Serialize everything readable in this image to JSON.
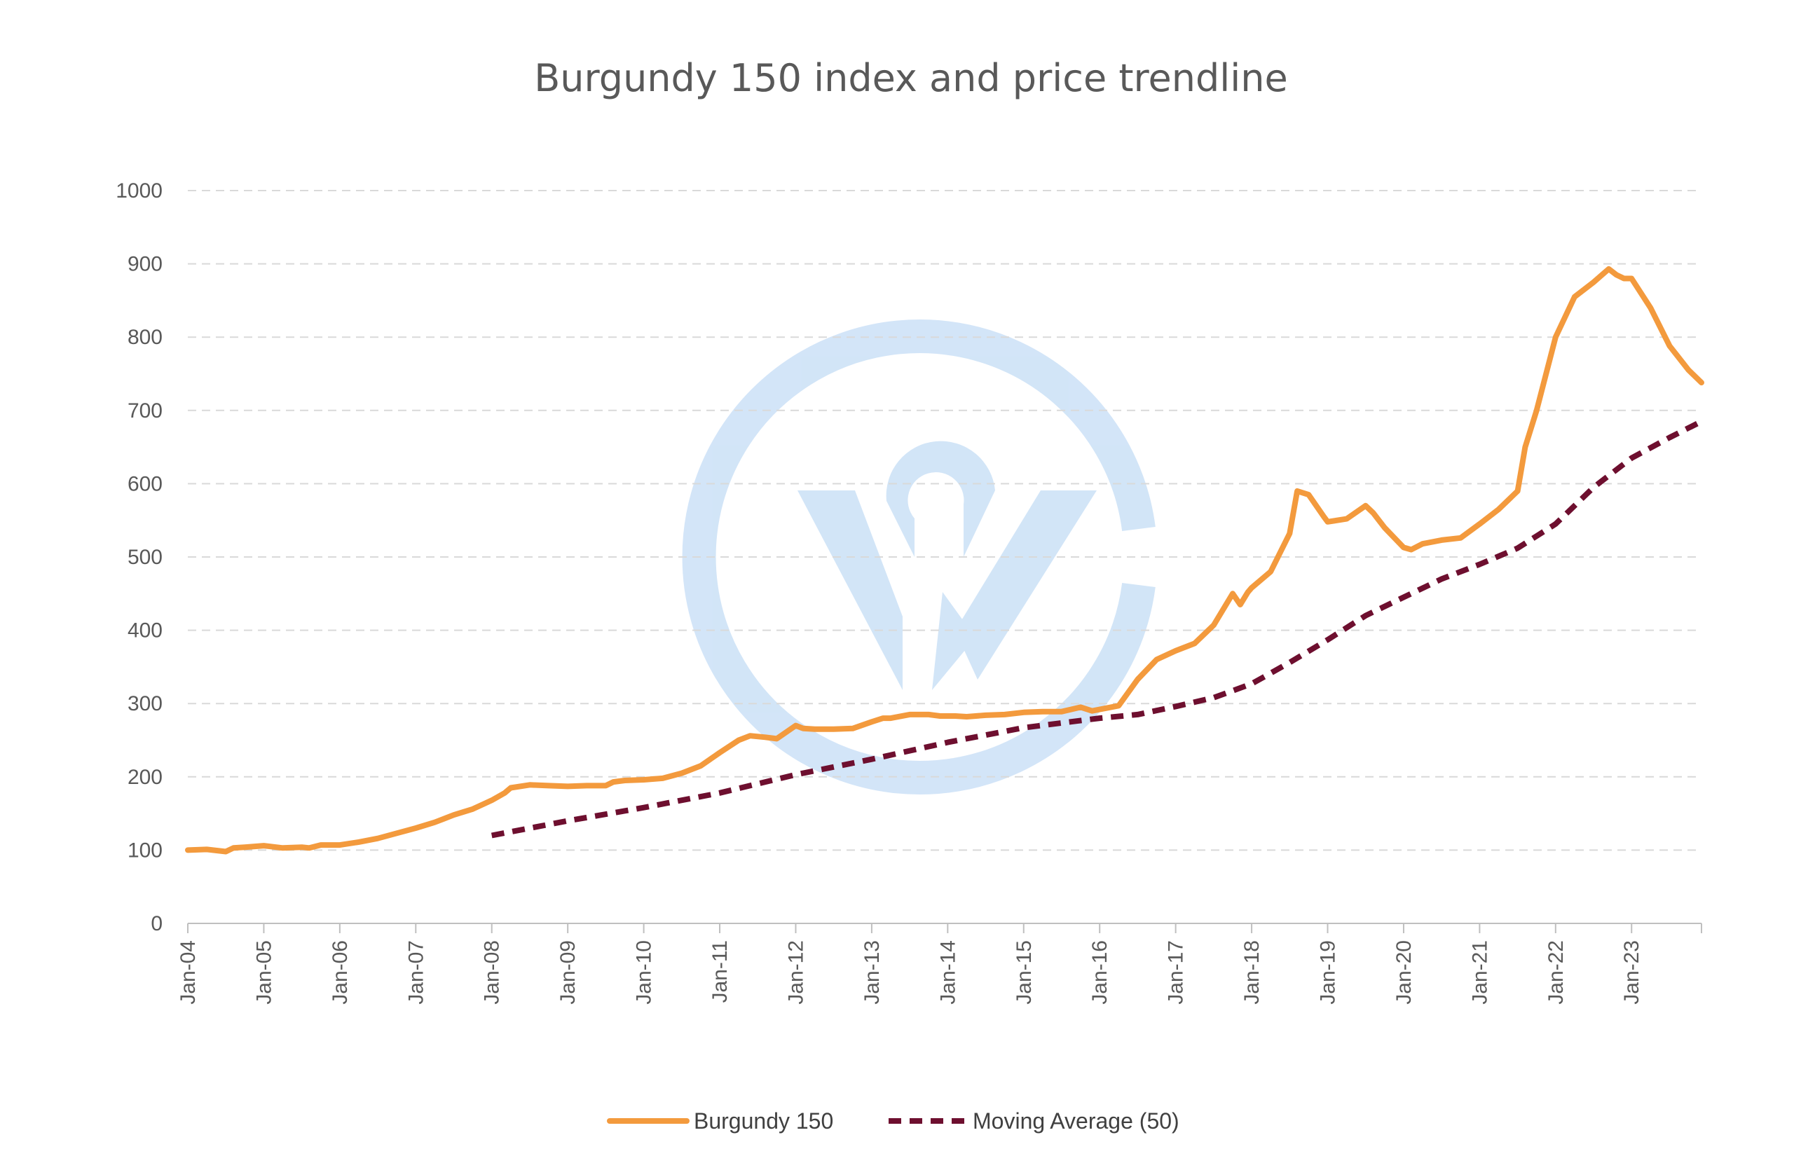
{
  "chart_data": {
    "type": "line",
    "title": "Burgundy 150 index and price trendline",
    "xlabel": "",
    "ylabel": "",
    "ylim": [
      0,
      1000
    ],
    "yticks": [
      0,
      100,
      200,
      300,
      400,
      500,
      600,
      700,
      800,
      900,
      1000
    ],
    "x_tick_labels": [
      "Jan-04",
      "Jan-05",
      "Jan-06",
      "Jan-07",
      "Jan-08",
      "Jan-09",
      "Jan-10",
      "Jan-11",
      "Jan-12",
      "Jan-13",
      "Jan-14",
      "Jan-15",
      "Jan-16",
      "Jan-17",
      "Jan-18",
      "Jan-19",
      "Jan-20",
      "Jan-21",
      "Jan-22",
      "Jan-23"
    ],
    "x_range_years": [
      2004.0,
      2023.92
    ],
    "grid": true,
    "legend_position": "bottom",
    "series": [
      {
        "name": "Burgundy 150",
        "color": "#f39a3d",
        "style": "solid",
        "x_years": [
          2004.0,
          2004.25,
          2004.5,
          2004.6,
          2004.75,
          2005.0,
          2005.25,
          2005.5,
          2005.6,
          2005.75,
          2006.0,
          2006.25,
          2006.5,
          2006.75,
          2007.0,
          2007.25,
          2007.5,
          2007.75,
          2008.0,
          2008.17,
          2008.25,
          2008.5,
          2008.75,
          2009.0,
          2009.25,
          2009.5,
          2009.6,
          2009.75,
          2010.0,
          2010.25,
          2010.5,
          2010.75,
          2011.0,
          2011.25,
          2011.4,
          2011.6,
          2011.75,
          2012.0,
          2012.1,
          2012.25,
          2012.5,
          2012.75,
          2013.0,
          2013.15,
          2013.25,
          2013.5,
          2013.75,
          2013.9,
          2014.1,
          2014.25,
          2014.5,
          2014.75,
          2015.0,
          2015.25,
          2015.5,
          2015.75,
          2015.9,
          2016.0,
          2016.25,
          2016.5,
          2016.75,
          2017.0,
          2017.25,
          2017.5,
          2017.75,
          2017.85,
          2017.95,
          2018.0,
          2018.25,
          2018.5,
          2018.6,
          2018.75,
          2018.95,
          2019.0,
          2019.25,
          2019.5,
          2019.6,
          2019.75,
          2020.0,
          2020.1,
          2020.25,
          2020.5,
          2020.75,
          2021.0,
          2021.25,
          2021.5,
          2021.6,
          2021.75,
          2022.0,
          2022.25,
          2022.5,
          2022.7,
          2022.8,
          2022.9,
          2023.0,
          2023.25,
          2023.5,
          2023.75,
          2023.92
        ],
        "values": [
          100,
          101,
          98,
          103,
          104,
          106,
          103,
          104,
          103,
          107,
          107,
          111,
          116,
          123,
          130,
          138,
          148,
          156,
          168,
          178,
          185,
          189,
          188,
          187,
          188,
          188,
          193,
          195,
          196,
          198,
          205,
          215,
          233,
          250,
          256,
          254,
          252,
          270,
          266,
          265,
          265,
          266,
          275,
          280,
          280,
          285,
          285,
          283,
          283,
          282,
          284,
          285,
          288,
          289,
          289,
          295,
          290,
          292,
          297,
          333,
          360,
          372,
          382,
          407,
          450,
          435,
          452,
          458,
          480,
          532,
          590,
          585,
          555,
          548,
          552,
          570,
          560,
          540,
          513,
          510,
          518,
          523,
          526,
          545,
          565,
          590,
          650,
          700,
          800,
          855,
          875,
          893,
          885,
          880,
          880,
          840,
          788,
          755,
          738
        ]
      },
      {
        "name": "Moving Average (50)",
        "color": "#6e0f2f",
        "style": "dashed",
        "x_years": [
          2008.0,
          2009.0,
          2010.0,
          2011.0,
          2012.0,
          2013.0,
          2014.0,
          2015.0,
          2016.0,
          2016.5,
          2017.0,
          2017.5,
          2018.0,
          2018.5,
          2019.0,
          2019.5,
          2020.0,
          2020.5,
          2021.0,
          2021.5,
          2022.0,
          2022.5,
          2023.0,
          2023.5,
          2023.92
        ],
        "values": [
          120,
          140,
          158,
          178,
          203,
          224,
          247,
          267,
          280,
          285,
          296,
          308,
          327,
          356,
          387,
          420,
          445,
          470,
          490,
          512,
          545,
          595,
          635,
          663,
          685
        ]
      }
    ]
  }
}
